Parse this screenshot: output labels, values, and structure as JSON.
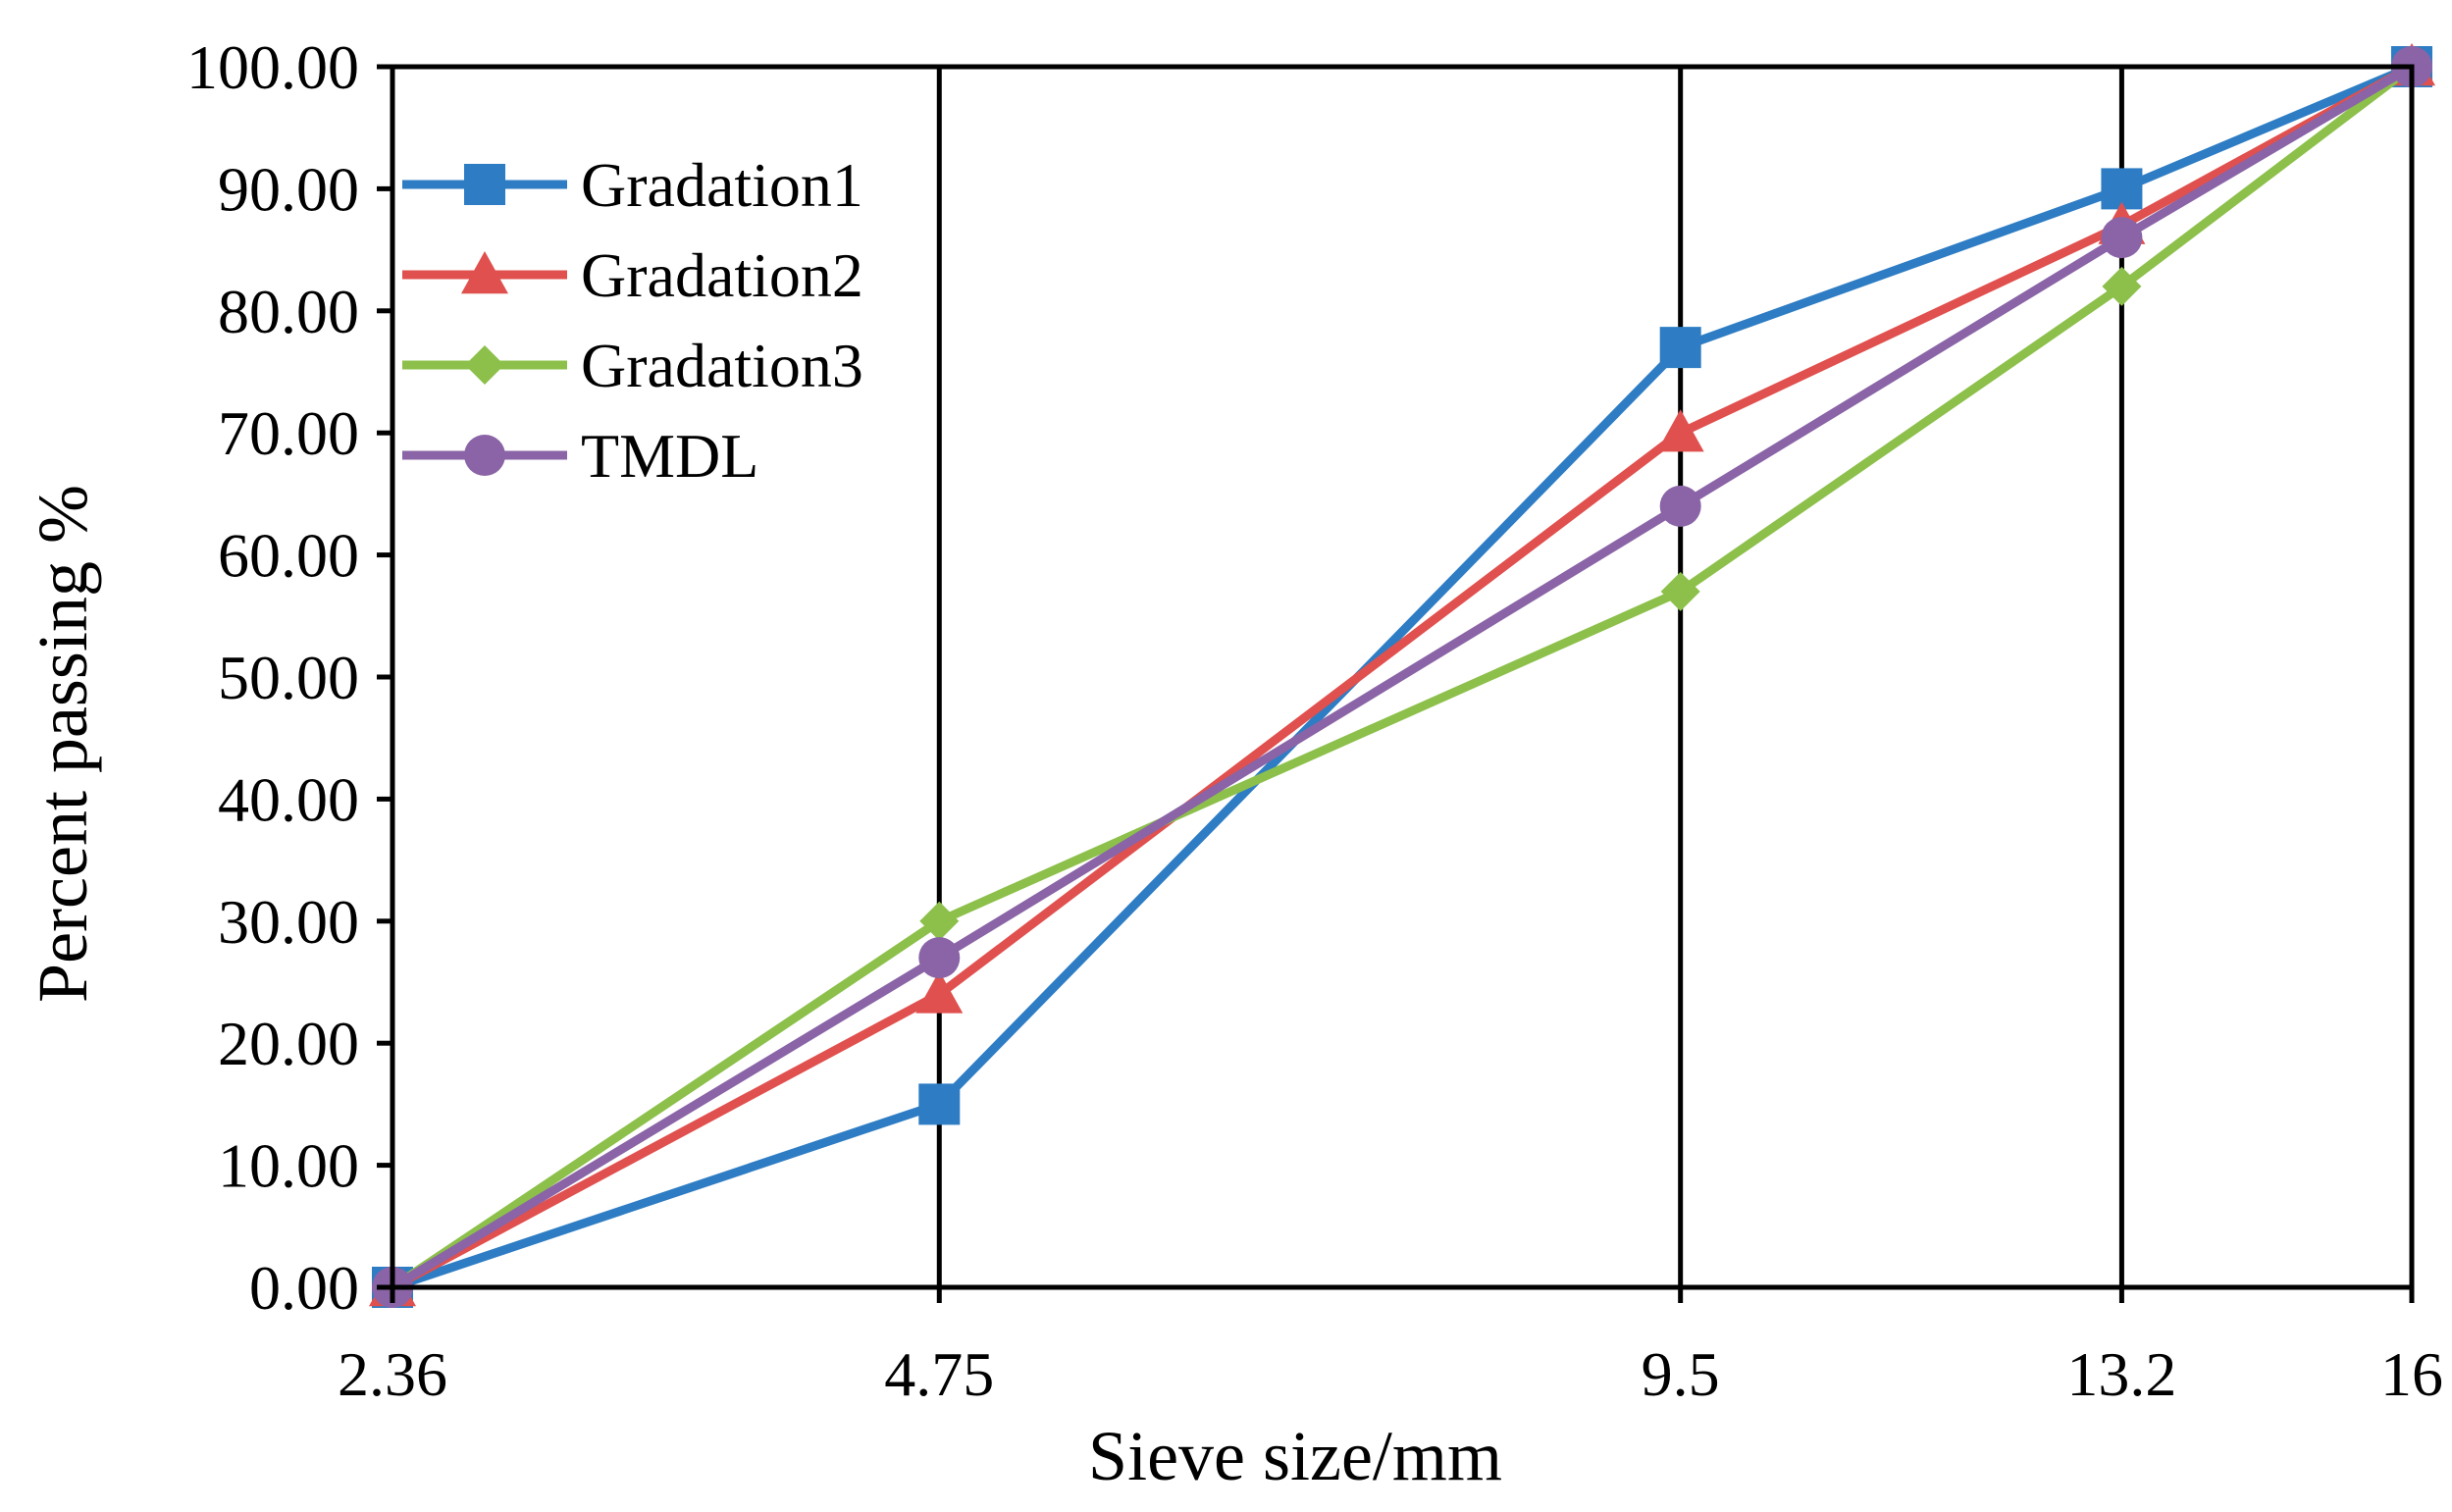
{
  "chart_data": {
    "type": "line",
    "title": "",
    "xlabel": "Sieve size/mm",
    "ylabel": "Percent passing %",
    "x_scale": "power-0.45",
    "x_ticks": [
      "2.36",
      "4.75",
      "9.5",
      "13.2",
      "16"
    ],
    "x": [
      2.36,
      4.75,
      9.5,
      13.2,
      16
    ],
    "ylim": [
      0,
      100
    ],
    "y_ticks": [
      "0.00",
      "10.00",
      "20.00",
      "30.00",
      "40.00",
      "50.00",
      "60.00",
      "70.00",
      "80.00",
      "90.00",
      "100.00"
    ],
    "grid": "vertical lines at x ticks",
    "legend_position": "top-left",
    "series": [
      {
        "name": "Gradation1",
        "color": "#2e7dc4",
        "marker": "square",
        "values": [
          0,
          15,
          77,
          90,
          100
        ]
      },
      {
        "name": "Gradation2",
        "color": "#e0504e",
        "marker": "triangle",
        "values": [
          0,
          24,
          70,
          87,
          100
        ]
      },
      {
        "name": "Gradation3",
        "color": "#8cc04a",
        "marker": "diamond",
        "values": [
          0,
          30,
          57,
          82,
          100
        ]
      },
      {
        "name": "TMDL",
        "color": "#8a64a6",
        "marker": "circle",
        "values": [
          0,
          27,
          64,
          86,
          100
        ]
      }
    ]
  }
}
